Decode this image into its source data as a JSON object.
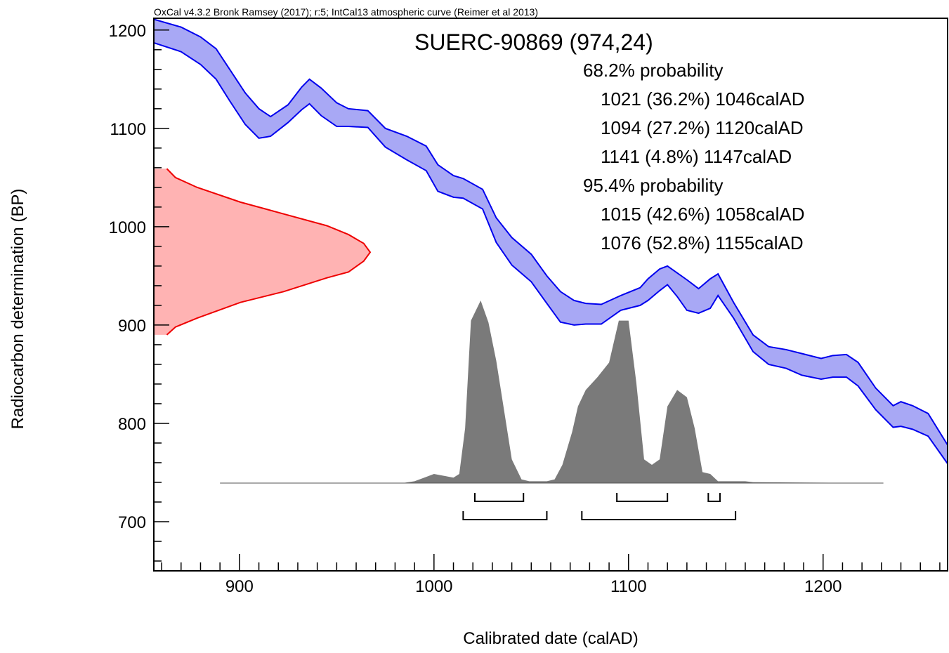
{
  "header": "OxCal v4.3.2 Bronk Ramsey (2017); r:5; IntCal13 atmospheric curve (Reimer et al 2013)",
  "title": "SUERC-90869 (974,24)",
  "results": {
    "p68_label": "68.2% probability",
    "p68": [
      "1021 (36.2%) 1046calAD",
      "1094 (27.2%) 1120calAD",
      "1141 (4.8%) 1147calAD"
    ],
    "p95_label": "95.4% probability",
    "p95": [
      "1015 (42.6%) 1058calAD",
      "1076 (52.8%) 1155calAD"
    ]
  },
  "chart_data": {
    "type": "area",
    "xlabel": "Calibrated date (calAD)",
    "ylabel": "Radiocarbon determination (BP)",
    "xlim": [
      856,
      1264
    ],
    "ylim": [
      650,
      1212
    ],
    "xticks": [
      900,
      1000,
      1100,
      1200
    ],
    "yticks": [
      700,
      800,
      900,
      1000,
      1100,
      1200
    ],
    "colors": {
      "curve": "#0000ee",
      "curve_fill": "#a8a8f5",
      "measurement": "#ee0000",
      "measurement_fill": "#ffb3b3",
      "posterior": "#7a7a7a"
    },
    "calibration_curve": {
      "name": "IntCal13",
      "x": [
        856,
        870,
        880,
        888,
        895,
        903,
        910,
        916,
        925,
        932,
        936,
        942,
        950,
        956,
        966,
        975,
        986,
        996,
        1002,
        1010,
        1015,
        1025,
        1032,
        1040,
        1050,
        1058,
        1065,
        1072,
        1078,
        1086,
        1096,
        1106,
        1110,
        1116,
        1120,
        1125,
        1130,
        1136,
        1142,
        1146,
        1154,
        1164,
        1172,
        1181,
        1189,
        1199,
        1205,
        1212,
        1218,
        1227,
        1236,
        1240,
        1246,
        1254,
        1264
      ],
      "upper": [
        1211,
        1203,
        1193,
        1181,
        1160,
        1136,
        1120,
        1112,
        1124,
        1142,
        1150,
        1141,
        1126,
        1120,
        1118,
        1100,
        1092,
        1082,
        1063,
        1052,
        1049,
        1038,
        1009,
        989,
        972,
        950,
        934,
        925,
        922,
        921,
        930,
        938,
        947,
        957,
        960,
        953,
        946,
        937,
        947,
        952,
        923,
        890,
        878,
        875,
        871,
        866,
        869,
        870,
        862,
        836,
        818,
        822,
        818,
        810,
        778
      ],
      "lower": [
        1187,
        1178,
        1165,
        1150,
        1128,
        1104,
        1090,
        1092,
        1106,
        1119,
        1125,
        1113,
        1102,
        1102,
        1101,
        1081,
        1068,
        1057,
        1036,
        1030,
        1029,
        1018,
        984,
        961,
        944,
        922,
        903,
        900,
        901,
        901,
        915,
        920,
        925,
        935,
        941,
        929,
        915,
        912,
        917,
        930,
        907,
        873,
        860,
        856,
        849,
        845,
        847,
        847,
        838,
        814,
        796,
        797,
        794,
        787,
        759
      ]
    },
    "measurement": {
      "mean": 974,
      "sigma": 24,
      "values": [
        [
          0.06,
          890
        ],
        [
          0.1,
          898
        ],
        [
          0.2,
          907
        ],
        [
          0.4,
          923
        ],
        [
          0.6,
          934
        ],
        [
          0.8,
          948
        ],
        [
          0.9,
          954
        ],
        [
          0.97,
          965
        ],
        [
          1.0,
          974
        ],
        [
          0.97,
          983
        ],
        [
          0.9,
          992
        ],
        [
          0.8,
          1001
        ],
        [
          0.6,
          1013
        ],
        [
          0.4,
          1025
        ],
        [
          0.2,
          1040
        ],
        [
          0.1,
          1050
        ],
        [
          0.06,
          1059
        ]
      ]
    },
    "posterior": {
      "x": [
        890,
        985,
        990,
        995,
        1000,
        1005,
        1010,
        1013,
        1016,
        1019,
        1024,
        1028,
        1032,
        1036,
        1040,
        1045,
        1049,
        1054,
        1058,
        1062,
        1066,
        1071,
        1074,
        1078,
        1084,
        1090,
        1095,
        1100,
        1104,
        1108,
        1112,
        1116,
        1120,
        1125,
        1130,
        1134,
        1138,
        1142,
        1146,
        1151,
        1155,
        1160,
        1164,
        1231
      ],
      "y": [
        0,
        0.002,
        0.01,
        0.03,
        0.05,
        0.04,
        0.03,
        0.05,
        0.3,
        0.89,
        1.0,
        0.88,
        0.67,
        0.4,
        0.13,
        0.02,
        0.01,
        0.01,
        0.01,
        0.02,
        0.1,
        0.28,
        0.42,
        0.51,
        0.58,
        0.66,
        0.89,
        0.89,
        0.55,
        0.13,
        0.1,
        0.13,
        0.42,
        0.51,
        0.47,
        0.3,
        0.06,
        0.05,
        0.01,
        0.01,
        0.01,
        0.01,
        0.005,
        0
      ]
    },
    "ranges_68": [
      [
        1021,
        1046
      ],
      [
        1094,
        1120
      ],
      [
        1141,
        1147
      ]
    ],
    "ranges_95": [
      [
        1015,
        1058
      ],
      [
        1076,
        1155
      ]
    ]
  }
}
